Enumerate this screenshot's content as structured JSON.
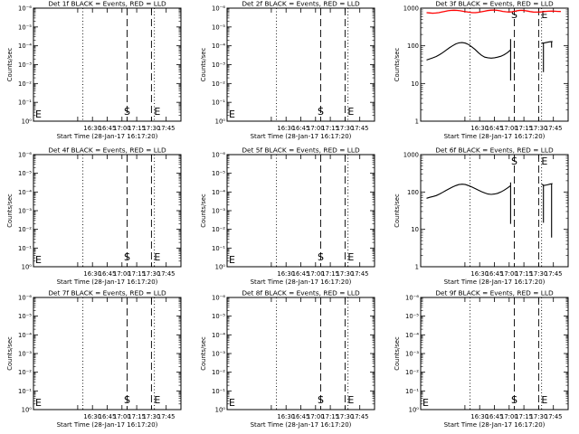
{
  "chart_data": [
    {
      "title": "Det 1f BLACK = Events, RED = LLD",
      "type": "line",
      "scale": "log",
      "ylabel": "Counts/sec",
      "xlabel": "Start Time (28-Jan-17 16:17:20)",
      "yticks": [
        "10⁰",
        "10⁻¹",
        "10⁻²",
        "10⁻³",
        "10⁻⁴",
        "10⁻⁵",
        "10⁻⁶"
      ],
      "xticks": [
        "16:30",
        "16:45",
        "17:00",
        "17:15",
        "17:30",
        "17:45"
      ],
      "markers": [
        "E",
        "S",
        "E"
      ],
      "series": []
    },
    {
      "title": "Det 2f BLACK = Events, RED = LLD",
      "type": "line",
      "scale": "log",
      "ylabel": "Counts/sec",
      "xlabel": "Start Time (28-Jan-17 16:17:20)",
      "yticks": [
        "10⁰",
        "10⁻¹",
        "10⁻²",
        "10⁻³",
        "10⁻⁴",
        "10⁻⁵",
        "10⁻⁶"
      ],
      "xticks": [
        "16:30",
        "16:45",
        "17:00",
        "17:15",
        "17:30",
        "17:45"
      ],
      "markers": [
        "E",
        "S",
        "E"
      ],
      "series": []
    },
    {
      "title": "Det 3f BLACK = Events, RED = LLD",
      "type": "line",
      "scale": "log",
      "ylabel": "Counts/sec",
      "xlabel": "Start Time (28-Jan-17 16:17:20)",
      "yticks": [
        "1",
        "10",
        "100",
        "1000"
      ],
      "xticks": [
        "16:30",
        "16:45",
        "17:00",
        "17:15",
        "17:30",
        "17:45"
      ],
      "markers": [
        "S",
        "E"
      ],
      "series": [
        {
          "color": "#ff0000",
          "kind": "lld"
        },
        {
          "color": "#000000",
          "kind": "events"
        }
      ]
    },
    {
      "title": "Det 4f BLACK = Events, RED = LLD",
      "type": "line",
      "scale": "log",
      "ylabel": "Counts/sec",
      "xlabel": "Start Time (28-Jan-17 16:17:20)",
      "yticks": [
        "10⁰",
        "10⁻¹",
        "10⁻²",
        "10⁻³",
        "10⁻⁴",
        "10⁻⁵",
        "10⁻⁶"
      ],
      "xticks": [
        "16:30",
        "16:45",
        "17:00",
        "17:15",
        "17:30",
        "17:45"
      ],
      "markers": [
        "E",
        "S",
        "E"
      ],
      "series": []
    },
    {
      "title": "Det 5f BLACK = Events, RED = LLD",
      "type": "line",
      "scale": "log",
      "ylabel": "Counts/sec",
      "xlabel": "Start Time (28-Jan-17 16:17:20)",
      "yticks": [
        "10⁰",
        "10⁻¹",
        "10⁻²",
        "10⁻³",
        "10⁻⁴",
        "10⁻⁵",
        "10⁻⁶"
      ],
      "xticks": [
        "16:30",
        "16:45",
        "17:00",
        "17:15",
        "17:30",
        "17:45"
      ],
      "markers": [
        "E",
        "S",
        "E"
      ],
      "series": []
    },
    {
      "title": "Det 6f BLACK = Events, RED = LLD",
      "type": "line",
      "scale": "log",
      "ylabel": "Counts/sec",
      "xlabel": "Start Time (28-Jan-17 16:17:20)",
      "yticks": [
        "1",
        "10",
        "100",
        "1000"
      ],
      "xticks": [
        "16:30",
        "16:45",
        "17:00",
        "17:15",
        "17:30",
        "17:45"
      ],
      "markers": [
        "S",
        "E"
      ],
      "series": [
        {
          "color": "#000000",
          "kind": "events"
        }
      ]
    },
    {
      "title": "Det 7f BLACK = Events, RED = LLD",
      "type": "line",
      "scale": "log",
      "ylabel": "Counts/sec",
      "xlabel": "Start Time (28-Jan-17 16:17:20)",
      "yticks": [
        "10⁰",
        "10⁻¹",
        "10⁻²",
        "10⁻³",
        "10⁻⁴",
        "10⁻⁵",
        "10⁻⁶"
      ],
      "xticks": [
        "16:30",
        "16:45",
        "17:00",
        "17:15",
        "17:30",
        "17:45"
      ],
      "markers": [
        "E",
        "S",
        "E"
      ],
      "series": []
    },
    {
      "title": "Det 8f BLACK = Events, RED = LLD",
      "type": "line",
      "scale": "log",
      "ylabel": "Counts/sec",
      "xlabel": "Start Time (28-Jan-17 16:17:20)",
      "yticks": [
        "10⁰",
        "10⁻¹",
        "10⁻²",
        "10⁻³",
        "10⁻⁴",
        "10⁻⁵",
        "10⁻⁶"
      ],
      "xticks": [
        "16:30",
        "16:45",
        "17:00",
        "17:15",
        "17:30",
        "17:45"
      ],
      "markers": [
        "E",
        "S",
        "E"
      ],
      "series": []
    },
    {
      "title": "Det 9f BLACK = Events, RED = LLD",
      "type": "line",
      "scale": "log",
      "ylabel": "Counts/sec",
      "xlabel": "Start Time (28-Jan-17 16:17:20)",
      "yticks": [
        "10⁰",
        "10⁻¹",
        "10⁻²",
        "10⁻³",
        "10⁻⁴",
        "10⁻⁵",
        "10⁻⁶"
      ],
      "xticks": [
        "16:30",
        "16:45",
        "17:00",
        "17:15",
        "17:30",
        "17:45"
      ],
      "markers": [
        "E",
        "S",
        "E"
      ],
      "series": []
    }
  ]
}
